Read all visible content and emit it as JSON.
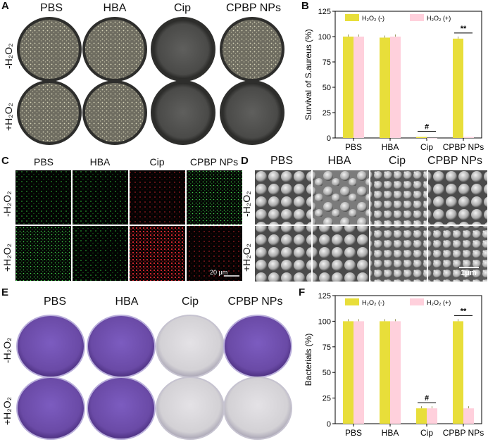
{
  "panels": {
    "A": "A",
    "B": "B",
    "C": "C",
    "D": "D",
    "E": "E",
    "F": "F"
  },
  "columns": [
    "PBS",
    "HBA",
    "Cip",
    "CPBP NPs"
  ],
  "rows": {
    "minus": "-H₂O₂",
    "plus": "+H₂O₂"
  },
  "scale_bars": {
    "C": "20 μm",
    "D": "1μm"
  },
  "plate_colors": {
    "A_colony": "#7c7a6e",
    "A_clear": "#5a5a58",
    "E_stained": "#6a4aa6",
    "E_cleared": "#d3d1d5"
  },
  "chart_data": [
    {
      "id": "B",
      "type": "bar",
      "categories": [
        "PBS",
        "HBA",
        "Cip",
        "CPBP NPs"
      ],
      "series": [
        {
          "name": "H₂O₂ (-)",
          "color": "#e8de3a",
          "values": [
            100,
            99,
            1,
            98
          ]
        },
        {
          "name": "H₂O₂ (+)",
          "color": "#ffd0dc",
          "values": [
            100,
            100,
            0,
            1
          ]
        }
      ],
      "ylabel": "Survival of S.aureus (%)",
      "ylim": [
        0,
        125
      ],
      "yticks": [
        0,
        25,
        50,
        75,
        100,
        125
      ],
      "legend": "top",
      "annotations": [
        {
          "category": "Cip",
          "text": "#"
        },
        {
          "category": "CPBP NPs",
          "text": "**"
        }
      ]
    },
    {
      "id": "F",
      "type": "bar",
      "categories": [
        "PBS",
        "HBA",
        "Cip",
        "CPBP NPs"
      ],
      "series": [
        {
          "name": "H₂O₂ (-)",
          "color": "#e8de3a",
          "values": [
            100,
            100,
            15,
            100
          ]
        },
        {
          "name": "H₂O₂ (+)",
          "color": "#ffd0dc",
          "values": [
            100,
            100,
            15,
            15
          ]
        }
      ],
      "ylabel": "Bacterials (%)",
      "ylim": [
        0,
        125
      ],
      "yticks": [
        0,
        25,
        50,
        75,
        100,
        125
      ],
      "legend": "top",
      "annotations": [
        {
          "category": "Cip",
          "text": "#"
        },
        {
          "category": "CPBP NPs",
          "text": "**"
        }
      ]
    }
  ]
}
